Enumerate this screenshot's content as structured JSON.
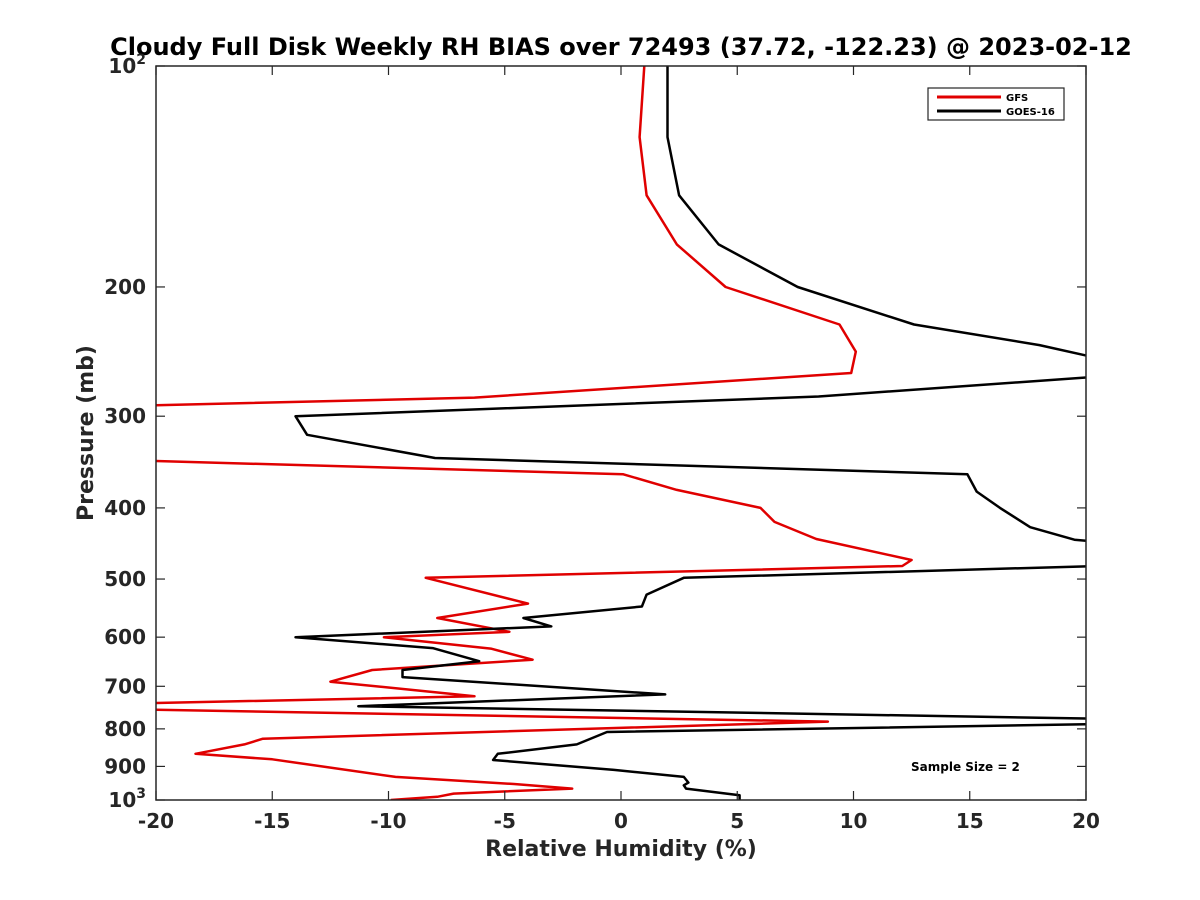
{
  "chart_data": {
    "type": "line",
    "title": "Cloudy Full Disk Weekly RH BIAS over 72493 (37.72, -122.23) @ 2023-02-12",
    "xlabel": "Relative Humidity (%)",
    "ylabel": "Pressure (mb)",
    "xlim": [
      -20,
      20
    ],
    "ylim": [
      100,
      1000
    ],
    "yscale": "log",
    "y_reversed": true,
    "grid": false,
    "legend_position": "top-right",
    "annotation": "Sample Size = 2",
    "x_ticks": [
      "-20",
      "-15",
      "-10",
      "-5",
      "0",
      "5",
      "10",
      "15",
      "20"
    ],
    "y_ticks": [
      {
        "value": 100,
        "label": "10",
        "sup": "2"
      },
      {
        "value": 200,
        "label": "200",
        "sup": ""
      },
      {
        "value": 300,
        "label": "300",
        "sup": ""
      },
      {
        "value": 400,
        "label": "400",
        "sup": ""
      },
      {
        "value": 500,
        "label": "500",
        "sup": ""
      },
      {
        "value": 600,
        "label": "600",
        "sup": ""
      },
      {
        "value": 700,
        "label": "700",
        "sup": ""
      },
      {
        "value": 800,
        "label": "800",
        "sup": ""
      },
      {
        "value": 900,
        "label": "900",
        "sup": ""
      },
      {
        "value": 1000,
        "label": "10",
        "sup": "3"
      }
    ],
    "series": [
      {
        "name": "GFS",
        "color": "#e00000",
        "points": [
          [
            1,
            100
          ],
          [
            0.8,
            125
          ],
          [
            1.1,
            150
          ],
          [
            2.4,
            175
          ],
          [
            4.5,
            200
          ],
          [
            9.4,
            225
          ],
          [
            10.1,
            245
          ],
          [
            9.9,
            262
          ],
          [
            -6.3,
            283
          ],
          [
            -20.3,
            290
          ],
          [
            -20.3,
            345
          ],
          [
            0.1,
            360
          ],
          [
            2.4,
            378
          ],
          [
            6,
            400
          ],
          [
            6.6,
            418
          ],
          [
            8.4,
            441
          ],
          [
            12.5,
            471
          ],
          [
            12.1,
            480
          ],
          [
            -8.4,
            498
          ],
          [
            -4,
            540
          ],
          [
            -7.9,
            565
          ],
          [
            -4.8,
            590
          ],
          [
            -10.2,
            600
          ],
          [
            -5.6,
            622
          ],
          [
            -3.8,
            644
          ],
          [
            -10.7,
            665
          ],
          [
            -12.5,
            690
          ],
          [
            -6.3,
            722
          ],
          [
            -20.3,
            738
          ],
          [
            -20.3,
            753
          ],
          [
            8.9,
            782
          ],
          [
            -15.4,
            825
          ],
          [
            -16.2,
            840
          ],
          [
            -18.3,
            865
          ],
          [
            -15,
            880
          ],
          [
            -9.7,
            930
          ],
          [
            -4.6,
            951
          ],
          [
            -2.1,
            965
          ],
          [
            -7.2,
            980
          ],
          [
            -7.9,
            990
          ],
          [
            -9.9,
            1000
          ]
        ]
      },
      {
        "name": "GOES-16",
        "color": "#000000",
        "points": [
          [
            2,
            100
          ],
          [
            2,
            125
          ],
          [
            2.5,
            150
          ],
          [
            4.2,
            175
          ],
          [
            7.6,
            200
          ],
          [
            12.6,
            225
          ],
          [
            18,
            240
          ],
          [
            20.5,
            250
          ],
          [
            20.5,
            265
          ],
          [
            8.5,
            282
          ],
          [
            -14,
            300
          ],
          [
            -13.5,
            318
          ],
          [
            -8,
            342
          ],
          [
            14.9,
            360
          ],
          [
            15.3,
            380
          ],
          [
            16.3,
            400
          ],
          [
            17.6,
            425
          ],
          [
            19.5,
            442
          ],
          [
            20.5,
            445
          ],
          [
            20.5,
            480
          ],
          [
            2.7,
            498
          ],
          [
            1.1,
            525
          ],
          [
            0.9,
            545
          ],
          [
            -4.2,
            565
          ],
          [
            -3,
            580
          ],
          [
            -14,
            600
          ],
          [
            -8.1,
            621
          ],
          [
            -6.1,
            647
          ],
          [
            -9.4,
            665
          ],
          [
            -9.4,
            680
          ],
          [
            1.9,
            718
          ],
          [
            -11.3,
            745
          ],
          [
            20.5,
            775
          ],
          [
            20.5,
            788
          ],
          [
            -0.6,
            808
          ],
          [
            -1.9,
            840
          ],
          [
            -5.3,
            865
          ],
          [
            -5.5,
            882
          ],
          [
            -0.3,
            910
          ],
          [
            2.7,
            930
          ],
          [
            2.9,
            947
          ],
          [
            2.7,
            955
          ],
          [
            2.8,
            965
          ],
          [
            5.1,
            985
          ],
          [
            5.1,
            1000
          ]
        ]
      }
    ]
  }
}
